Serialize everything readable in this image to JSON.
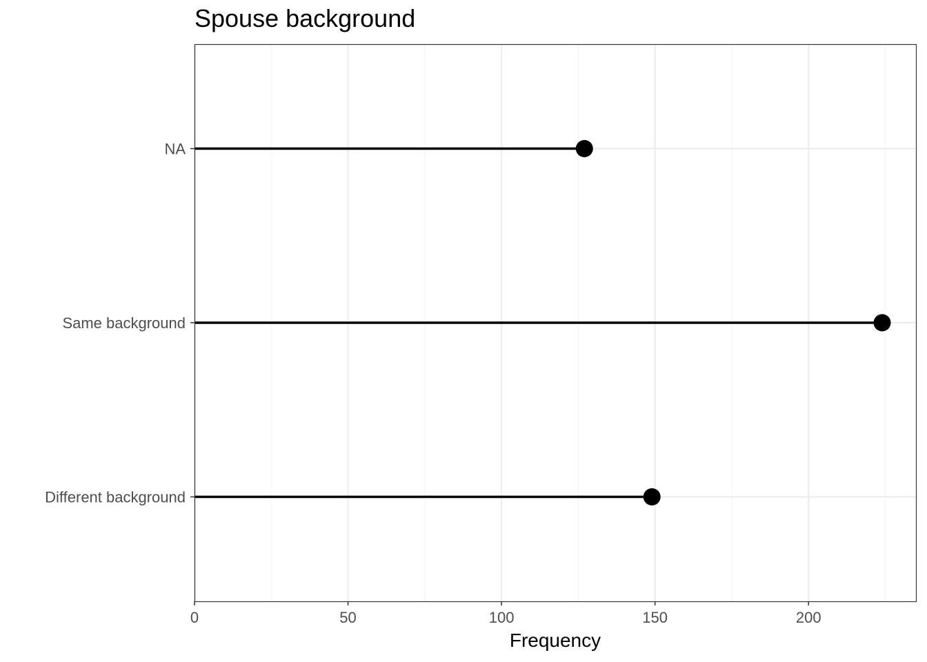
{
  "chart_data": {
    "type": "lollipop",
    "title": "Spouse background",
    "xlabel": "Frequency",
    "ylabel": "",
    "categories": [
      "Different background",
      "Same background",
      "NA"
    ],
    "values": [
      149,
      224,
      127
    ],
    "xlim": [
      0,
      235
    ],
    "x_ticks": [
      0,
      50,
      100,
      150,
      200
    ],
    "grid": true,
    "legend": "none",
    "colors": {
      "mark": "#000000",
      "grid_major": "#ebebeb",
      "grid_minor": "#f4f4f4",
      "panel_border": "#333333",
      "tick_text": "#4d4d4d"
    }
  }
}
